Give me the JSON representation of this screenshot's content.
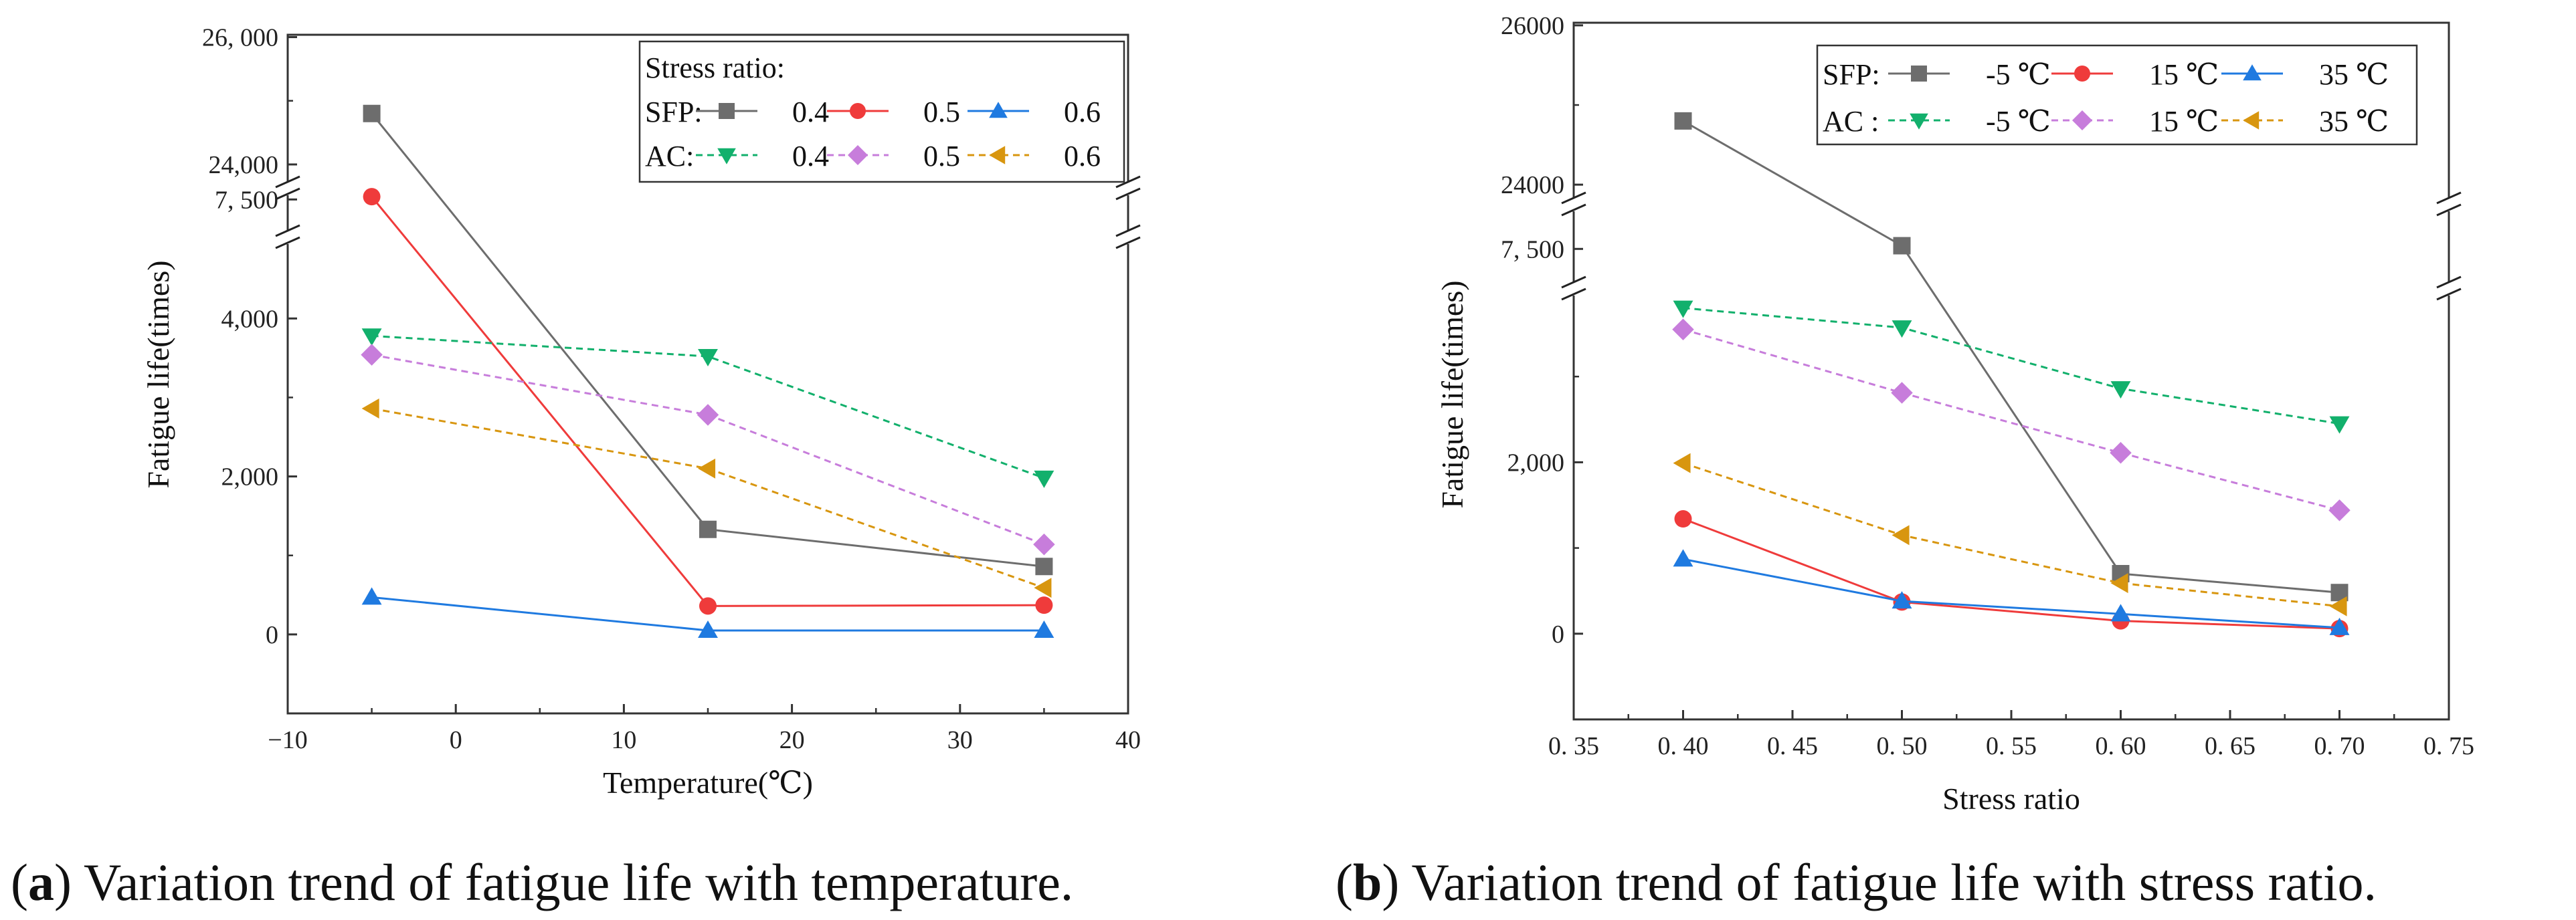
{
  "chart_data": [
    {
      "type": "line",
      "caption_letter": "a",
      "caption_text": ") Variation trend of fatigue life with temperature.",
      "xlabel": "Temperature(℃)",
      "ylabel": "Fatigue life(times)",
      "xlim": [
        -10,
        40
      ],
      "x_ticks": [
        -10,
        0,
        10,
        20,
        30,
        40
      ],
      "x_tick_labels": [
        "−10",
        "0",
        "10",
        "20",
        "30",
        "40"
      ],
      "y_ticks": [
        0,
        2000,
        4000,
        7500,
        24000,
        26000
      ],
      "y_tick_labels": [
        "0",
        "2,000",
        "4,000",
        "7, 500",
        "24,000",
        "26, 000"
      ],
      "x": [
        -5,
        15,
        35
      ],
      "legend": {
        "title": "Stress ratio:",
        "row_labels": [
          "SFP:",
          "AC:"
        ],
        "entries": [
          "0.4",
          "0.5",
          "0.6"
        ]
      },
      "series": [
        {
          "name": "SFP 0.4",
          "group": "SFP",
          "values": [
            24800,
            1330,
            860
          ],
          "color": "#6d6d6d",
          "marker": "square",
          "dash": "solid"
        },
        {
          "name": "SFP 0.5",
          "group": "SFP",
          "values": [
            7550,
            360,
            370
          ],
          "color": "#ef3b3b",
          "marker": "circle",
          "dash": "solid"
        },
        {
          "name": "SFP 0.6",
          "group": "SFP",
          "values": [
            470,
            50,
            50
          ],
          "color": "#1f7ae0",
          "marker": "triangle-up",
          "dash": "solid"
        },
        {
          "name": "AC 0.4",
          "group": "AC",
          "values": [
            3780,
            3520,
            1980
          ],
          "color": "#12b06c",
          "marker": "triangle-down",
          "dash": "dashed"
        },
        {
          "name": "AC 0.5",
          "group": "AC",
          "values": [
            3540,
            2780,
            1140
          ],
          "color": "#c77ddb",
          "marker": "diamond",
          "dash": "dashed"
        },
        {
          "name": "AC 0.6",
          "group": "AC",
          "values": [
            2860,
            2100,
            590
          ],
          "color": "#d8960f",
          "marker": "triangle-left",
          "dash": "dashed"
        }
      ]
    },
    {
      "type": "line",
      "caption_letter": "b",
      "caption_text": ") Variation trend of fatigue life with stress ratio.",
      "xlabel": "Stress ratio",
      "ylabel": "Fatigue life(times)",
      "xlim": [
        0.35,
        0.75
      ],
      "x_ticks": [
        0.35,
        0.4,
        0.45,
        0.5,
        0.55,
        0.6,
        0.65,
        0.7,
        0.75
      ],
      "x_tick_labels": [
        "0. 35",
        "0. 40",
        "0. 45",
        "0. 50",
        "0. 55",
        "0. 60",
        "0. 65",
        "0. 70",
        "0. 75"
      ],
      "y_ticks": [
        0,
        2000,
        7500,
        24000,
        26000
      ],
      "y_tick_labels": [
        "0",
        "2,000",
        "7, 500",
        "24000",
        "26000"
      ],
      "x": [
        0.4,
        0.5,
        0.6,
        0.7
      ],
      "legend": {
        "title": "",
        "row_labels": [
          "SFP:",
          "AC :"
        ],
        "entries": [
          "-5 ℃",
          "15 ℃",
          "35 ℃"
        ]
      },
      "series": [
        {
          "name": "SFP -5 ℃",
          "group": "SFP",
          "values": [
            24800,
            7550,
            700,
            480
          ],
          "color": "#6d6d6d",
          "marker": "square",
          "dash": "solid"
        },
        {
          "name": "SFP 15 ℃",
          "group": "SFP",
          "values": [
            1340,
            370,
            150,
            60
          ],
          "color": "#ef3b3b",
          "marker": "circle",
          "dash": "solid"
        },
        {
          "name": "SFP 35 ℃",
          "group": "SFP",
          "values": [
            870,
            380,
            230,
            70
          ],
          "color": "#1f7ae0",
          "marker": "triangle-up",
          "dash": "solid"
        },
        {
          "name": "AC -5 ℃",
          "group": "AC",
          "values": [
            3800,
            3570,
            2860,
            2450
          ],
          "color": "#12b06c",
          "marker": "triangle-down",
          "dash": "dashed"
        },
        {
          "name": "AC 15 ℃",
          "group": "AC",
          "values": [
            3550,
            2810,
            2110,
            1440
          ],
          "color": "#c77ddb",
          "marker": "diamond",
          "dash": "dashed"
        },
        {
          "name": "AC 35 ℃",
          "group": "AC",
          "values": [
            1990,
            1150,
            590,
            320
          ],
          "color": "#d8960f",
          "marker": "triangle-left",
          "dash": "dashed"
        }
      ]
    }
  ]
}
